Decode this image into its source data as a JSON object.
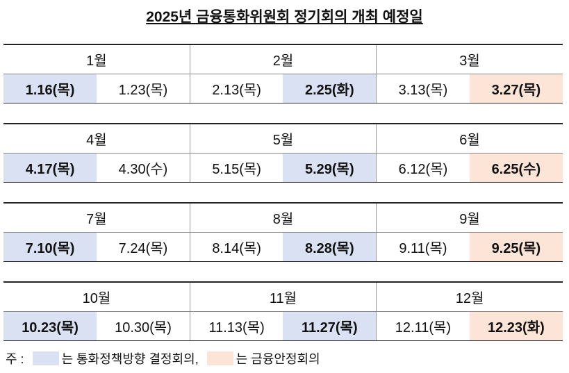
{
  "title": "2025년 금융통화위원회 정기회의 개최 예정일",
  "blocks": [
    {
      "months": [
        {
          "name": "1월",
          "dates": [
            {
              "text": "1.16(목)",
              "color": "#d9e1f2"
            },
            {
              "text": "1.23(목)"
            }
          ]
        },
        {
          "name": "2월",
          "dates": [
            {
              "text": "2.13(목)"
            },
            {
              "text": "2.25(화)",
              "color": "#d9e1f2"
            }
          ]
        },
        {
          "name": "3월",
          "dates": [
            {
              "text": "3.13(목)"
            },
            {
              "text": "3.27(목)",
              "color": "#fce4d6"
            }
          ]
        }
      ]
    },
    {
      "months": [
        {
          "name": "4월",
          "dates": [
            {
              "text": "4.17(목)",
              "color": "#d9e1f2"
            },
            {
              "text": "4.30(수)"
            }
          ]
        },
        {
          "name": "5월",
          "dates": [
            {
              "text": "5.15(목)"
            },
            {
              "text": "5.29(목)",
              "color": "#d9e1f2"
            }
          ]
        },
        {
          "name": "6월",
          "dates": [
            {
              "text": "6.12(목)"
            },
            {
              "text": "6.25(수)",
              "color": "#fce4d6"
            }
          ]
        }
      ]
    },
    {
      "months": [
        {
          "name": "7월",
          "dates": [
            {
              "text": "7.10(목)",
              "color": "#d9e1f2"
            },
            {
              "text": "7.24(목)"
            }
          ]
        },
        {
          "name": "8월",
          "dates": [
            {
              "text": "8.14(목)"
            },
            {
              "text": "8.28(목)",
              "color": "#d9e1f2"
            }
          ]
        },
        {
          "name": "9월",
          "dates": [
            {
              "text": "9.11(목)"
            },
            {
              "text": "9.25(목)",
              "color": "#fce4d6"
            }
          ]
        }
      ]
    },
    {
      "months": [
        {
          "name": "10월",
          "dates": [
            {
              "text": "10.23(목)",
              "color": "#d9e1f2"
            },
            {
              "text": "10.30(목)"
            }
          ]
        },
        {
          "name": "11월",
          "dates": [
            {
              "text": "11.13(목)"
            },
            {
              "text": "11.27(목)",
              "color": "#d9e1f2"
            }
          ]
        },
        {
          "name": "12월",
          "dates": [
            {
              "text": "12.11(목)"
            },
            {
              "text": "12.23(화)",
              "color": "#fce4d6"
            }
          ]
        }
      ]
    }
  ],
  "note": {
    "prefix": "주 :",
    "items": [
      {
        "color": "#d9e1f2",
        "text": "는 통화정책방향 결정회의,"
      },
      {
        "color": "#fce4d6",
        "text": "는 금융안정회의"
      }
    ]
  }
}
